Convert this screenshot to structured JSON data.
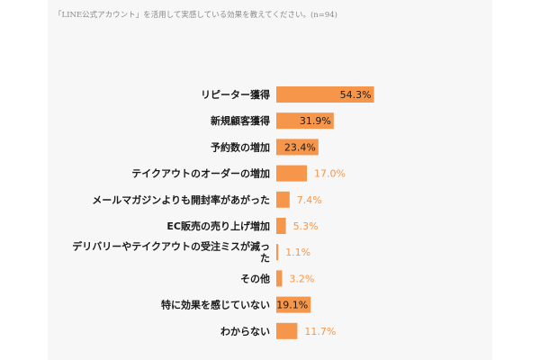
{
  "colors": {
    "bar": "#f5964a",
    "value_inside": "#1a1a1a",
    "value_outside": "#f5964a",
    "background": "#f7f7f7"
  },
  "chart_data": {
    "type": "bar",
    "orientation": "horizontal",
    "title": "「LINE公式アカウント」を活用して実感している効果を教えてください。(n=94)",
    "xlabel": "",
    "ylabel": "",
    "xlim": [
      0,
      100
    ],
    "grid": false,
    "legend": "none",
    "value_suffix": "%",
    "categories": [
      [
        "リピーター獲得"
      ],
      [
        "新規顧客獲得"
      ],
      [
        "予約数の増加"
      ],
      [
        "テイクアウトのオーダーの増加"
      ],
      [
        "メールマガジンよりも開封率があがった"
      ],
      [
        "EC販売の売り上げ増加"
      ],
      [
        "デリバリーやテイクアウトの受注ミスが減っ",
        "た"
      ],
      [
        "その他"
      ],
      [
        "特に効果を感じていない"
      ],
      [
        "わからない"
      ]
    ],
    "values": [
      54.3,
      31.9,
      23.4,
      17.0,
      7.4,
      5.3,
      1.1,
      3.2,
      19.1,
      11.7
    ],
    "value_labels": [
      "54.3%",
      "31.9%",
      "23.4%",
      "17.0%",
      "7.4%",
      "5.3%",
      "1.1%",
      "3.2%",
      "19.1%",
      "11.7%"
    ]
  }
}
